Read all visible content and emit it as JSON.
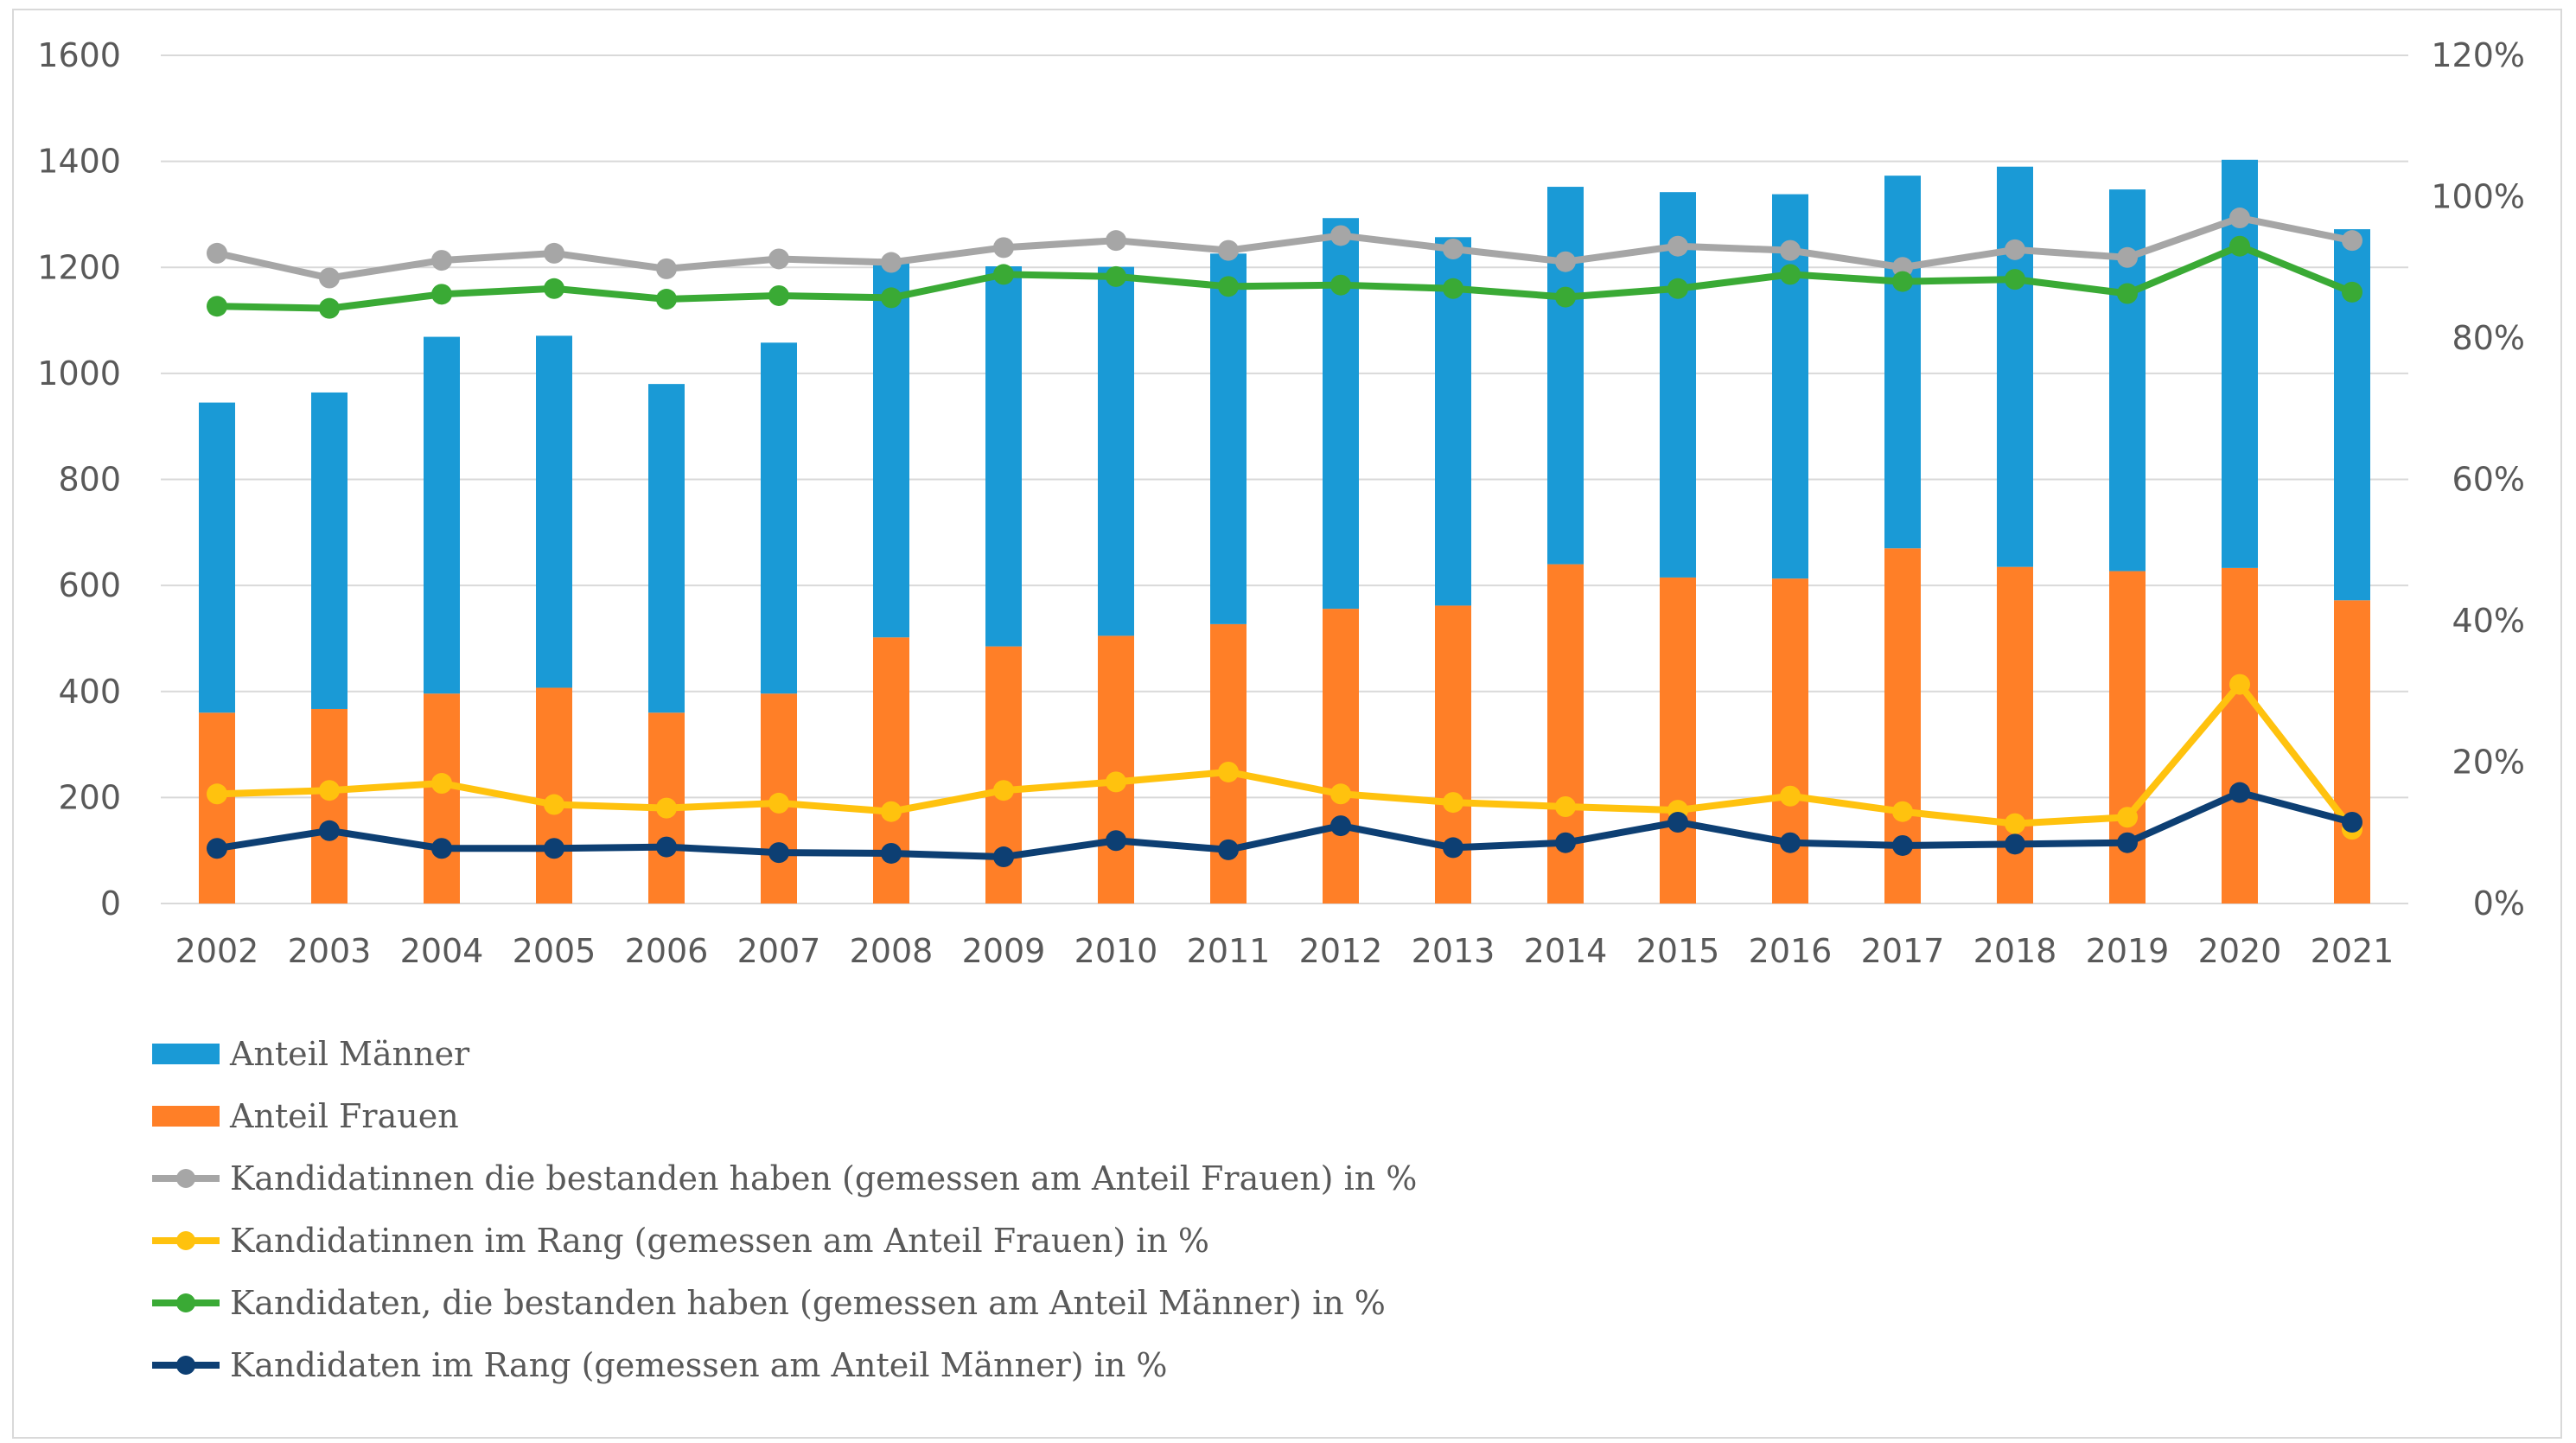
{
  "chart_data": {
    "type": "bar",
    "stacked": true,
    "categories": [
      "2002",
      "2003",
      "2004",
      "2005",
      "2006",
      "2007",
      "2008",
      "2009",
      "2010",
      "2011",
      "2012",
      "2013",
      "2014",
      "2015",
      "2016",
      "2017",
      "2018",
      "2019",
      "2020",
      "2021"
    ],
    "ylim": [
      0,
      1600
    ],
    "y_ticks": [
      "0",
      "200",
      "400",
      "600",
      "800",
      "1000",
      "1200",
      "1400",
      "1600"
    ],
    "y2lim": [
      0,
      120
    ],
    "y2_ticks": [
      "0%",
      "20%",
      "40%",
      "60%",
      "80%",
      "100%",
      "120%"
    ],
    "grid": true,
    "legend_position": "bottom-left",
    "bar_series": [
      {
        "name": "Anteil Frauen",
        "color": "#FF7F27",
        "values": [
          360,
          367,
          396,
          407,
          360,
          396,
          502,
          485,
          505,
          527,
          556,
          562,
          640,
          615,
          613,
          670,
          635,
          627,
          633,
          572
        ]
      },
      {
        "name": "Anteil Männer",
        "color": "#1A9AD6",
        "values": [
          585,
          597,
          673,
          664,
          620,
          662,
          708,
          717,
          696,
          699,
          737,
          695,
          712,
          727,
          725,
          703,
          755,
          720,
          770,
          700
        ]
      }
    ],
    "line_series": [
      {
        "name": "Kandidatinnen die bestanden haben (gemessen am Anteil Frauen) in %",
        "color": "#A6A6A6",
        "values": [
          92,
          88.5,
          91,
          92,
          89.8,
          91.2,
          90.7,
          92.8,
          93.8,
          92.4,
          94.5,
          92.6,
          90.8,
          93,
          92.4,
          90,
          92.5,
          91.4,
          97,
          93.8
        ]
      },
      {
        "name": "Kandidatinnen im Rang (gemessen am Anteil Frauen) in %",
        "color": "#FFC20E",
        "values": [
          15.5,
          16,
          17,
          14,
          13.5,
          14.2,
          13,
          16,
          17.2,
          18.6,
          15.5,
          14.3,
          13.7,
          13.2,
          15.2,
          13,
          11.3,
          12.2,
          31,
          10.5
        ]
      },
      {
        "name": "Kandidaten, die bestanden haben (gemessen am Anteil Männer) in %",
        "color": "#3AAA35",
        "values": [
          84.5,
          84.2,
          86.2,
          87,
          85.5,
          86,
          85.7,
          89,
          88.7,
          87.3,
          87.5,
          87,
          85.8,
          87,
          89,
          88,
          88.3,
          86.3,
          93,
          86.5
        ]
      },
      {
        "name": "Kandidaten im Rang (gemessen am Anteil Männer) in %",
        "color": "#0D3F73",
        "values": [
          7.8,
          10.3,
          7.8,
          7.8,
          8,
          7.2,
          7.1,
          6.6,
          8.9,
          7.6,
          11,
          7.9,
          8.6,
          11.5,
          8.6,
          8.2,
          8.4,
          8.6,
          15.7,
          11.5
        ]
      }
    ],
    "legend": [
      {
        "label": "Anteil Männer",
        "kind": "bar",
        "color": "#1A9AD6"
      },
      {
        "label": "Anteil Frauen",
        "kind": "bar",
        "color": "#FF7F27"
      },
      {
        "label": "Kandidatinnen die bestanden haben (gemessen am Anteil Frauen) in %",
        "kind": "line",
        "color": "#A6A6A6"
      },
      {
        "label": "Kandidatinnen im Rang (gemessen am Anteil Frauen) in %",
        "kind": "line",
        "color": "#FFC20E"
      },
      {
        "label": "Kandidaten, die bestanden haben (gemessen am Anteil Männer) in %",
        "kind": "line",
        "color": "#3AAA35"
      },
      {
        "label": "Kandidaten im Rang (gemessen am Anteil Männer) in %",
        "kind": "line",
        "color": "#0D3F73"
      }
    ]
  }
}
